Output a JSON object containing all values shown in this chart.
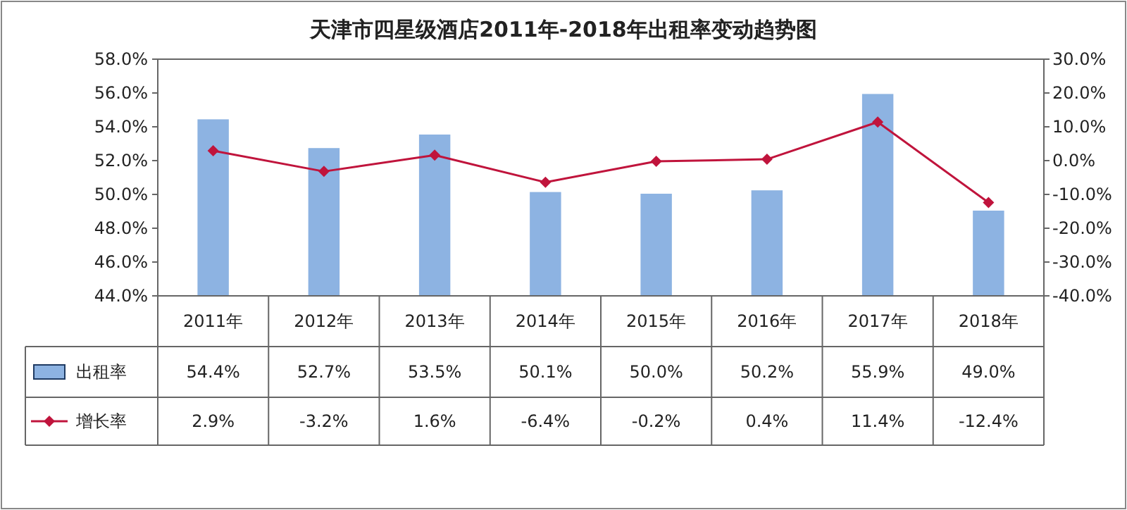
{
  "chart_data": {
    "type": "bar",
    "title": "天津市四星级酒店2011年-2018年出租率变动趋势图",
    "categories": [
      "2011年",
      "2012年",
      "2013年",
      "2014年",
      "2015年",
      "2016年",
      "2017年",
      "2018年"
    ],
    "series": [
      {
        "name": "出租率",
        "color": "#8db3e2",
        "values": [
          54.4,
          52.7,
          53.5,
          50.1,
          50.0,
          50.2,
          55.9,
          49.0
        ],
        "value_labels": [
          "54.4%",
          "52.7%",
          "53.5%",
          "50.1%",
          "50.0%",
          "50.2%",
          "55.9%",
          "49.0%"
        ]
      },
      {
        "name": "增长率",
        "type": "line",
        "axis": "y2",
        "color": "#c0143c",
        "marker": "diamond",
        "values": [
          2.9,
          -3.2,
          1.6,
          -6.4,
          -0.2,
          0.4,
          11.4,
          -12.4
        ],
        "value_labels": [
          "2.9%",
          "-3.2%",
          "1.6%",
          "-6.4%",
          "-0.2%",
          "0.4%",
          "11.4%",
          "-12.4%"
        ]
      }
    ],
    "ylim": [
      44,
      58
    ],
    "yticks": [
      {
        "value": 44,
        "label": "44.0%"
      },
      {
        "value": 46,
        "label": "46.0%"
      },
      {
        "value": 48,
        "label": "48.0%"
      },
      {
        "value": 50,
        "label": "50.0%"
      },
      {
        "value": 52,
        "label": "52.0%"
      },
      {
        "value": 54,
        "label": "54.0%"
      },
      {
        "value": 56,
        "label": "56.0%"
      },
      {
        "value": 58,
        "label": "58.0%"
      }
    ],
    "y2lim": [
      -40,
      30
    ],
    "y2ticks": [
      {
        "value": -40,
        "label": "-40.0%"
      },
      {
        "value": -30,
        "label": "-30.0%"
      },
      {
        "value": -20,
        "label": "-20.0%"
      },
      {
        "value": -10,
        "label": "-10.0%"
      },
      {
        "value": 0,
        "label": "0.0%"
      },
      {
        "value": 10,
        "label": "10.0%"
      },
      {
        "value": 20,
        "label": "20.0%"
      },
      {
        "value": 30,
        "label": "30.0%"
      }
    ],
    "legend": "bottom left"
  }
}
